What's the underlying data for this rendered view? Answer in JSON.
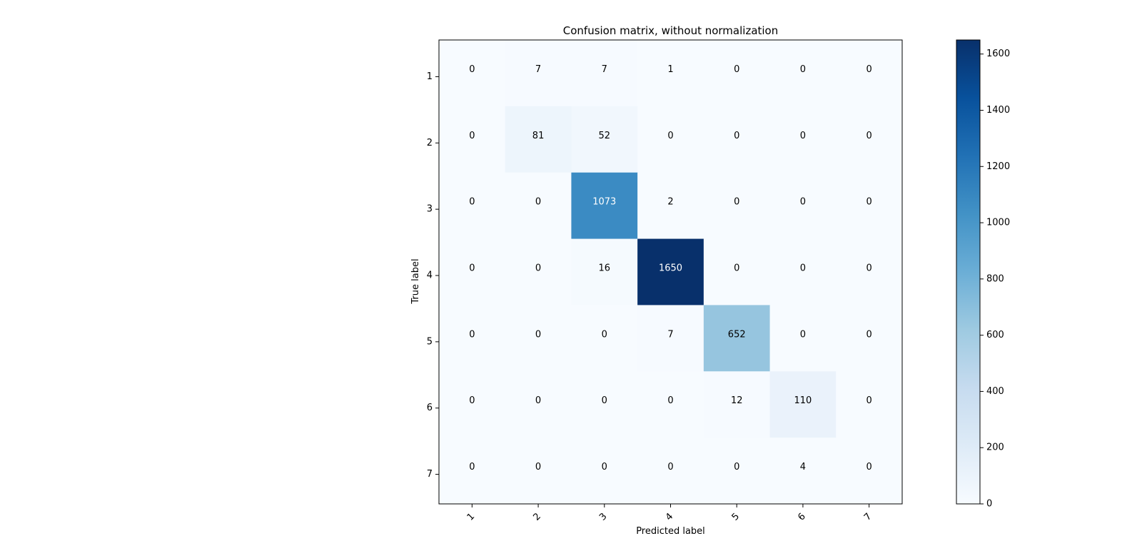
{
  "chart_data": {
    "type": "heatmap",
    "title": "Confusion matrix, without normalization",
    "xlabel": "Predicted label",
    "ylabel": "True label",
    "x_categories": [
      "1",
      "2",
      "3",
      "4",
      "5",
      "6",
      "7"
    ],
    "y_categories": [
      "1",
      "2",
      "3",
      "4",
      "5",
      "6",
      "7"
    ],
    "values": [
      [
        0,
        7,
        7,
        1,
        0,
        0,
        0
      ],
      [
        0,
        81,
        52,
        0,
        0,
        0,
        0
      ],
      [
        0,
        0,
        1073,
        2,
        0,
        0,
        0
      ],
      [
        0,
        0,
        16,
        1650,
        0,
        0,
        0
      ],
      [
        0,
        0,
        0,
        7,
        652,
        0,
        0
      ],
      [
        0,
        0,
        0,
        0,
        12,
        110,
        0
      ],
      [
        0,
        0,
        0,
        0,
        0,
        4,
        0
      ]
    ],
    "colormap": "Blues",
    "colorbar": {
      "range": [
        0,
        1650
      ],
      "ticks": [
        0,
        200,
        400,
        600,
        800,
        1000,
        1200,
        1400,
        1600
      ]
    },
    "grid": false,
    "x_tick_rotation": "45 degrees",
    "colors": {
      "low": "#f7fbff",
      "high": "#08306b",
      "text_dark": "#000000",
      "text_light": "#ffffff"
    }
  }
}
